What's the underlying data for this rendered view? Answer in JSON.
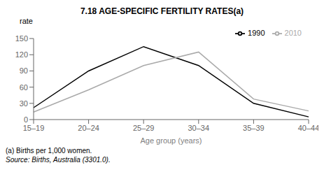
{
  "chart_data": {
    "type": "line",
    "title": "7.18   AGE-SPECIFIC FERTILITY RATES(a)",
    "xlabel": "Age group (years)",
    "ylabel": "rate",
    "categories": [
      "15–19",
      "20–24",
      "25–29",
      "30–34",
      "35–39",
      "40–44"
    ],
    "series": [
      {
        "name": "1990",
        "color": "#000000",
        "values": [
          22,
          90,
          135,
          100,
          30,
          5
        ]
      },
      {
        "name": "2010",
        "color": "#aaaaaa",
        "values": [
          14,
          55,
          100,
          125,
          38,
          16
        ]
      }
    ],
    "ylim": [
      0,
      150
    ],
    "yticks": [
      0,
      30,
      60,
      90,
      120,
      150
    ],
    "annotations": [
      "(a) Births per 1,000 women.",
      "Source: Births, Australia (3301.0)."
    ],
    "legend": "upper right",
    "grid": false
  }
}
